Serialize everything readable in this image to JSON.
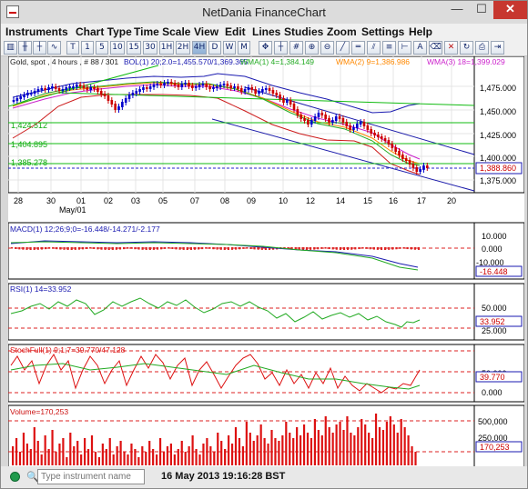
{
  "window": {
    "title": "NetDania FinanceChart",
    "close": "✕",
    "max": "☐",
    "min": "—"
  },
  "menu": [
    "Instruments",
    "Chart Type",
    "Time Scale",
    "View",
    "Edit",
    "Lines",
    "Studies",
    "Zoom",
    "Settings",
    "Help"
  ],
  "toolbar": {
    "timescales": [
      "T",
      "1",
      "5",
      "10",
      "15",
      "30",
      "1H",
      "2H",
      "4H",
      "D",
      "W",
      "M"
    ],
    "selected_timescale": "4H"
  },
  "legend": {
    "instrument": "Gold, spot , 4 hours , # 88 / 301",
    "bol": "BOL(1) 20;2.0=1,455.570/1,369.365",
    "wma1": "WMA(1) 4=1,384.149",
    "wma2": "WMA(2) 9=1,386.986",
    "wma3": "WMA(3) 18=1,399.029"
  },
  "price_axis": [
    "1,475.000",
    "1,450.000",
    "1,425.000",
    "1,400.000",
    "1,375.000"
  ],
  "last_price": "1,388.860",
  "level_labels": [
    "1,424.512",
    "1,404.895",
    "1,385.278"
  ],
  "date_axis": [
    "28",
    "30",
    "01",
    "02",
    "03",
    "05",
    "07",
    "08",
    "09",
    "10",
    "12",
    "14",
    "15",
    "16",
    "17",
    "20"
  ],
  "month_label": "May/01",
  "indicators": {
    "macd": {
      "label": "MACD(1) 12;26;9;0=-16.448/-14.271/-2.177",
      "axis": [
        "10.000",
        "0.000",
        "-10.000"
      ],
      "last": "-16.448"
    },
    "rsi": {
      "label": "RSI(1) 14=33.952",
      "axis": [
        "50.000",
        "25.000"
      ],
      "last": "33.952"
    },
    "stoch": {
      "label": "StochFull(1) 9;1;7=39.770/47.128",
      "axis": [
        "50.000",
        "0.000"
      ],
      "last": "39.770"
    },
    "volume": {
      "label": "Volume=170,253",
      "axis": [
        "500,000",
        "250,000"
      ],
      "last": "170,253"
    }
  },
  "status": {
    "search_icon": "🔍",
    "input_placeholder": "Type instrument name",
    "timestamp": "16 May 2013 19:16:28 BST"
  },
  "colors": {
    "candle_up": "#0000cc",
    "candle_down": "#cc0000",
    "bollinger": "#2222aa",
    "wma_fast": "#22aa22",
    "wma_mid": "#ff8800",
    "wma_slow": "#cc22cc",
    "trend_blue": "#1a1aaa",
    "trend_green": "#11bb11",
    "dashed_red": "#dd2222"
  }
}
